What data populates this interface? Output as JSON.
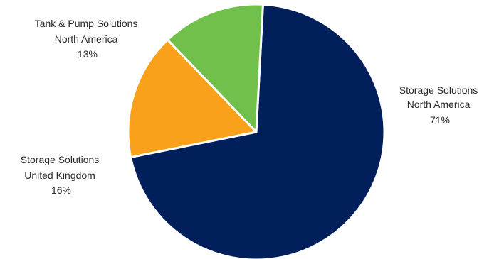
{
  "chart_data": {
    "type": "pie",
    "start_angle_deg": 3,
    "slices": [
      {
        "label": [
          "Storage Solutions",
          "North America"
        ],
        "value": 71,
        "value_label": "71%",
        "color": "#001f5b"
      },
      {
        "label": [
          "Storage Solutions",
          "United Kingdom"
        ],
        "value": 16,
        "value_label": "16%",
        "color": "#f9a11b"
      },
      {
        "label": [
          "Tank & Pump Solutions",
          "North America"
        ],
        "value": 13,
        "value_label": "13%",
        "color": "#71c04b"
      }
    ],
    "legend": "none"
  }
}
